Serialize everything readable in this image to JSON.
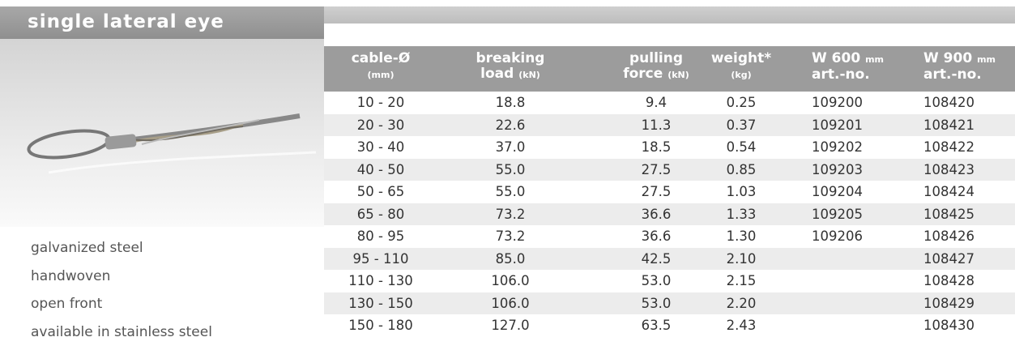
{
  "title": "single lateral eye",
  "features": [
    "galvanized steel",
    "handwoven",
    "open front",
    "available in stainless steel"
  ],
  "table": {
    "headers": [
      {
        "top": "cable-Ø",
        "bottom_unit": "(mm)"
      },
      {
        "top": "breaking",
        "bottom": "load",
        "bottom_unit": "(kN)"
      },
      {
        "top": "pulling",
        "bottom": "force",
        "bottom_unit": "(kN)"
      },
      {
        "top": "weight*",
        "bottom_unit": "(kg)"
      },
      {
        "top": "W 600",
        "top_unit": "mm",
        "bottom": "art.-no."
      },
      {
        "top": "W 900",
        "top_unit": "mm",
        "bottom": "art.-no."
      }
    ],
    "rows": [
      [
        "10 - 20",
        "18.8",
        "9.4",
        "0.25",
        "109200",
        "108420"
      ],
      [
        "20 - 30",
        "22.6",
        "11.3",
        "0.37",
        "109201",
        "108421"
      ],
      [
        "30 - 40",
        "37.0",
        "18.5",
        "0.54",
        "109202",
        "108422"
      ],
      [
        "40 - 50",
        "55.0",
        "27.5",
        "0.85",
        "109203",
        "108423"
      ],
      [
        "50 - 65",
        "55.0",
        "27.5",
        "1.03",
        "109204",
        "108424"
      ],
      [
        "65 - 80",
        "73.2",
        "36.6",
        "1.33",
        "109205",
        "108425"
      ],
      [
        "80 - 95",
        "73.2",
        "36.6",
        "1.30",
        "109206",
        "108426"
      ],
      [
        "95 - 110",
        "85.0",
        "42.5",
        "2.10",
        null,
        "108427"
      ],
      [
        "110 - 130",
        "106.0",
        "53.0",
        "2.15",
        null,
        "108428"
      ],
      [
        "130 - 150",
        "106.0",
        "53.0",
        "2.20",
        null,
        "108429"
      ],
      [
        "150 - 180",
        "127.0",
        "63.5",
        "2.43",
        null,
        "108430"
      ]
    ]
  }
}
